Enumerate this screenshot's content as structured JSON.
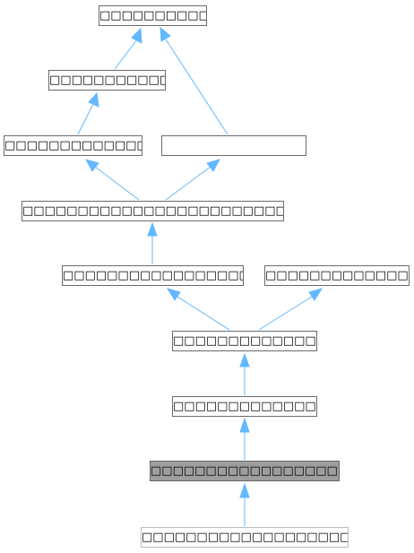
{
  "nodes": [
    {
      "id": "n1",
      "label": "□□□□□□□□□□□□□□□□□□"
    },
    {
      "id": "n2",
      "label": "□□□□□□□□□□□□□□□□□□□"
    },
    {
      "id": "n3",
      "label": "□□□□□□□□□□□□□□□□□□□□□□"
    },
    {
      "id": "n4",
      "label": ""
    },
    {
      "id": "n5",
      "label": "□□□□□□□□□□□□□□□□□□□□□□□□□□□□□□□□□□□□□□□□□□□□□□□"
    },
    {
      "id": "n6",
      "label": "□□□□□□□□□□□□□□□□□□□□□□□□□□□□□□□□"
    },
    {
      "id": "n7",
      "label": "□□□□□□□□□□□□□□□□□□□□□□□□"
    },
    {
      "id": "n8",
      "label": "□□□□□□□□□□□□□□□□□□□□□□□□"
    },
    {
      "id": "n9",
      "label": "□□□□□□□□□□□□□□□□□□□□□□□□"
    },
    {
      "id": "n10",
      "label": "□□□□□□□□□□□□□□□□□□□□□□□□□□□□□□□□□□"
    },
    {
      "id": "n11",
      "label": "□□□□□□□□□□□□□□□□□□□□□□□□□□□□□□□□□□□□□□"
    }
  ],
  "edges": [
    {
      "from": "n2",
      "to": "n1"
    },
    {
      "from": "n4",
      "to": "n1"
    },
    {
      "from": "n3",
      "to": "n2"
    },
    {
      "from": "n5",
      "to": "n3"
    },
    {
      "from": "n5",
      "to": "n4"
    },
    {
      "from": "n6",
      "to": "n5"
    },
    {
      "from": "n8",
      "to": "n6"
    },
    {
      "from": "n8",
      "to": "n7"
    },
    {
      "from": "n9",
      "to": "n8"
    },
    {
      "from": "n10",
      "to": "n9"
    },
    {
      "from": "n11",
      "to": "n10"
    }
  ],
  "colors": {
    "edge": "#63b8ff",
    "current_fill": "#9e9e9e",
    "node_border": "#6b6b6b",
    "faded_border": "#bdbdbd"
  }
}
